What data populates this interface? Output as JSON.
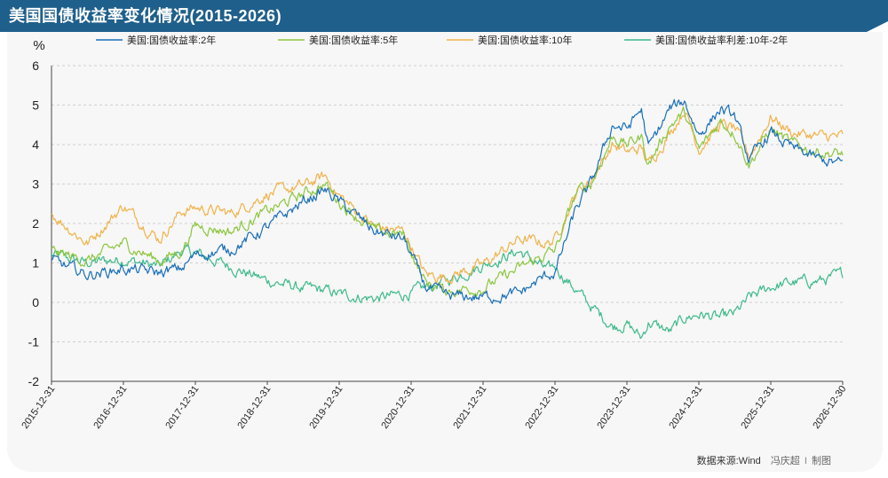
{
  "header": {
    "title": "美国国债收益率变化情况(2015-2026)"
  },
  "credit": {
    "source": "数据来源:Wind",
    "author": "冯庆超",
    "sep": "I",
    "made": "制图"
  },
  "colors": {
    "title_bg": "#1f5f8b",
    "series_2y": "#1a6fb8",
    "series_5y": "#8dc63f",
    "series_10y": "#f0b34a",
    "series_spread": "#3dba8b"
  },
  "chart_data": {
    "type": "line",
    "ylabel": "%",
    "ylim": [
      -2,
      6
    ],
    "y_ticks": [
      "-2",
      "-1",
      "0",
      "1",
      "2",
      "3",
      "4",
      "5",
      "6"
    ],
    "x_ticks": [
      "2015-12-31",
      "2016-12-31",
      "2017-12-31",
      "2018-12-31",
      "2019-12-31",
      "2020-12-31",
      "2021-12-31",
      "2022-12-31",
      "2023-12-31",
      "2024-12-31",
      "2025-12-31",
      "2026-12-30"
    ],
    "grid": true,
    "legend_position": "top",
    "series": [
      {
        "name": "美国:国债收益率:2年",
        "key": "y2",
        "points": [
          [
            2015.0,
            1.05
          ],
          [
            2015.5,
            0.7
          ],
          [
            2016.0,
            0.85
          ],
          [
            2016.5,
            0.75
          ],
          [
            2016.8,
            0.85
          ],
          [
            2017.0,
            1.2
          ],
          [
            2017.5,
            1.35
          ],
          [
            2018.0,
            1.9
          ],
          [
            2018.5,
            2.55
          ],
          [
            2018.8,
            2.85
          ],
          [
            2019.0,
            2.55
          ],
          [
            2019.5,
            1.8
          ],
          [
            2019.9,
            1.6
          ],
          [
            2020.2,
            0.4
          ],
          [
            2020.5,
            0.15
          ],
          [
            2021.0,
            0.13
          ],
          [
            2021.5,
            0.22
          ],
          [
            2021.9,
            0.7
          ],
          [
            2022.0,
            0.75
          ],
          [
            2022.3,
            2.4
          ],
          [
            2022.5,
            3.0
          ],
          [
            2022.8,
            4.5
          ],
          [
            2023.0,
            4.4
          ],
          [
            2023.2,
            4.9
          ],
          [
            2023.3,
            3.9
          ],
          [
            2023.6,
            4.9
          ],
          [
            2023.8,
            5.1
          ],
          [
            2024.0,
            4.25
          ],
          [
            2024.3,
            4.9
          ],
          [
            2024.5,
            4.7
          ],
          [
            2024.7,
            3.6
          ],
          [
            2025.0,
            4.3
          ],
          [
            2025.3,
            3.9
          ],
          [
            2025.7,
            3.6
          ],
          [
            2026.0,
            3.5
          ]
        ]
      },
      {
        "name": "美国:国债收益率:5年",
        "key": "y5",
        "points": [
          [
            2015.0,
            1.3
          ],
          [
            2015.5,
            1.05
          ],
          [
            2016.0,
            1.5
          ],
          [
            2016.5,
            1.05
          ],
          [
            2016.8,
            1.3
          ],
          [
            2017.0,
            1.95
          ],
          [
            2017.5,
            1.8
          ],
          [
            2018.0,
            2.3
          ],
          [
            2018.5,
            2.75
          ],
          [
            2018.8,
            3.0
          ],
          [
            2019.0,
            2.55
          ],
          [
            2019.5,
            1.8
          ],
          [
            2019.9,
            1.7
          ],
          [
            2020.2,
            0.5
          ],
          [
            2020.5,
            0.3
          ],
          [
            2021.0,
            0.37
          ],
          [
            2021.5,
            0.85
          ],
          [
            2021.9,
            1.25
          ],
          [
            2022.0,
            1.3
          ],
          [
            2022.3,
            2.8
          ],
          [
            2022.5,
            3.0
          ],
          [
            2022.8,
            4.2
          ],
          [
            2023.0,
            4.0
          ],
          [
            2023.2,
            4.2
          ],
          [
            2023.3,
            3.5
          ],
          [
            2023.6,
            4.5
          ],
          [
            2023.8,
            4.8
          ],
          [
            2024.0,
            3.85
          ],
          [
            2024.3,
            4.6
          ],
          [
            2024.5,
            4.3
          ],
          [
            2024.7,
            3.5
          ],
          [
            2025.0,
            4.4
          ],
          [
            2025.3,
            4.0
          ],
          [
            2025.7,
            3.8
          ],
          [
            2026.0,
            3.75
          ]
        ]
      },
      {
        "name": "美国:国债收益率:10年",
        "key": "y10",
        "points": [
          [
            2015.0,
            2.25
          ],
          [
            2015.5,
            1.5
          ],
          [
            2016.0,
            2.45
          ],
          [
            2016.5,
            1.6
          ],
          [
            2016.8,
            2.3
          ],
          [
            2017.0,
            2.4
          ],
          [
            2017.5,
            2.25
          ],
          [
            2018.0,
            2.75
          ],
          [
            2018.5,
            2.95
          ],
          [
            2018.8,
            3.2
          ],
          [
            2019.0,
            2.7
          ],
          [
            2019.5,
            1.9
          ],
          [
            2019.9,
            1.8
          ],
          [
            2020.2,
            0.7
          ],
          [
            2020.5,
            0.65
          ],
          [
            2021.0,
            0.95
          ],
          [
            2021.5,
            1.6
          ],
          [
            2021.9,
            1.5
          ],
          [
            2022.0,
            1.6
          ],
          [
            2022.3,
            2.8
          ],
          [
            2022.5,
            3.1
          ],
          [
            2022.8,
            4.0
          ],
          [
            2023.0,
            3.8
          ],
          [
            2023.2,
            3.9
          ],
          [
            2023.3,
            3.5
          ],
          [
            2023.6,
            4.3
          ],
          [
            2023.8,
            4.9
          ],
          [
            2024.0,
            3.9
          ],
          [
            2024.3,
            4.5
          ],
          [
            2024.5,
            4.4
          ],
          [
            2024.7,
            3.7
          ],
          [
            2025.0,
            4.7
          ],
          [
            2025.3,
            4.3
          ],
          [
            2025.7,
            4.2
          ],
          [
            2026.0,
            4.2
          ]
        ]
      },
      {
        "name": "美国:国债收益率利差:10年-2年",
        "key": "sp",
        "points": [
          [
            2015.0,
            1.2
          ],
          [
            2015.5,
            1.0
          ],
          [
            2016.0,
            1.1
          ],
          [
            2016.5,
            0.9
          ],
          [
            2016.8,
            1.3
          ],
          [
            2017.0,
            1.25
          ],
          [
            2017.5,
            0.9
          ],
          [
            2018.0,
            0.55
          ],
          [
            2018.5,
            0.35
          ],
          [
            2018.8,
            0.3
          ],
          [
            2019.0,
            0.2
          ],
          [
            2019.5,
            0.1
          ],
          [
            2019.9,
            0.2
          ],
          [
            2020.2,
            0.35
          ],
          [
            2020.5,
            0.55
          ],
          [
            2021.0,
            0.95
          ],
          [
            2021.5,
            1.3
          ],
          [
            2021.9,
            0.8
          ],
          [
            2022.0,
            0.9
          ],
          [
            2022.3,
            0.3
          ],
          [
            2022.5,
            -0.1
          ],
          [
            2022.8,
            -0.6
          ],
          [
            2023.0,
            -0.55
          ],
          [
            2023.2,
            -0.9
          ],
          [
            2023.3,
            -0.5
          ],
          [
            2023.6,
            -0.75
          ],
          [
            2023.8,
            -0.4
          ],
          [
            2024.0,
            -0.3
          ],
          [
            2024.3,
            -0.4
          ],
          [
            2024.5,
            -0.3
          ],
          [
            2024.7,
            0.1
          ],
          [
            2025.0,
            0.4
          ],
          [
            2025.3,
            0.5
          ],
          [
            2025.7,
            0.55
          ],
          [
            2026.0,
            0.7
          ]
        ]
      }
    ]
  }
}
